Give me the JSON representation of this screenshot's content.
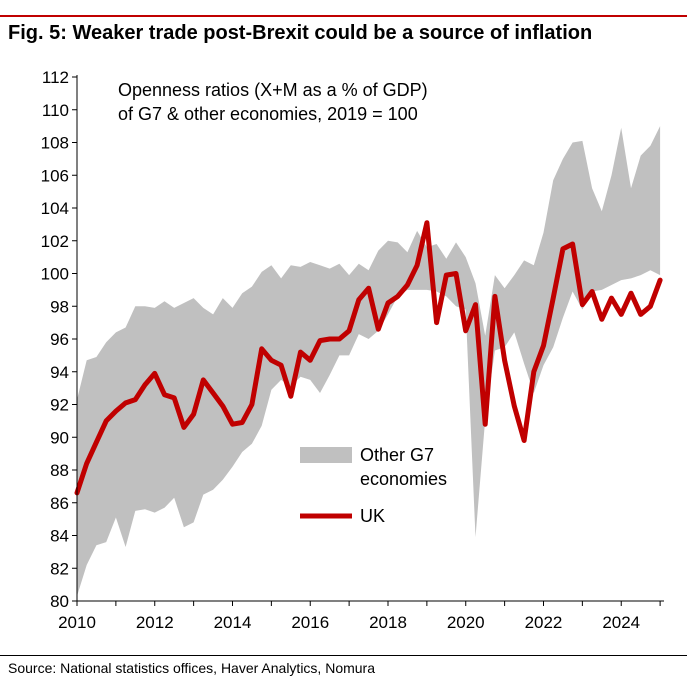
{
  "header": {
    "title": "Fig. 5: Weaker trade post-Brexit could be a source of inflation"
  },
  "footer": {
    "source": "Source: National statistics offices, Haver Analytics, Nomura"
  },
  "colors": {
    "accent": "#c00000",
    "uk_line": "#c00000",
    "band": "#c0c0c0"
  },
  "chart_data": {
    "type": "area",
    "title": "Openness ratios (X+M as a % of GDP) of G7 & other economies, 2019 = 100",
    "annotation_lines": [
      "Openness ratios (X+M as a % of GDP)",
      "of G7 & other economies, 2019 = 100"
    ],
    "xlabel": "",
    "ylabel": "",
    "xlim": [
      2010,
      2025.1
    ],
    "ylim": [
      80,
      112
    ],
    "x_ticks": [
      2010,
      2012,
      2014,
      2016,
      2018,
      2020,
      2022,
      2024
    ],
    "y_ticks": [
      80,
      82,
      84,
      86,
      88,
      90,
      92,
      94,
      96,
      98,
      100,
      102,
      104,
      106,
      108,
      110,
      112
    ],
    "grid": false,
    "legend": {
      "placement": "bottom-middle",
      "entries": [
        {
          "label_lines": [
            "Other G7",
            "economies"
          ],
          "kind": "band"
        },
        {
          "label_lines": [
            "UK"
          ],
          "kind": "line"
        }
      ]
    },
    "series": [
      {
        "name": "Other G7 economies",
        "kind": "band",
        "x": [
          2010.0,
          2010.25,
          2010.5,
          2010.75,
          2011.0,
          2011.25,
          2011.5,
          2011.75,
          2012.0,
          2012.25,
          2012.5,
          2012.75,
          2013.0,
          2013.25,
          2013.5,
          2013.75,
          2014.0,
          2014.25,
          2014.5,
          2014.75,
          2015.0,
          2015.25,
          2015.5,
          2015.75,
          2016.0,
          2016.25,
          2016.5,
          2016.75,
          2017.0,
          2017.25,
          2017.5,
          2017.75,
          2018.0,
          2018.25,
          2018.5,
          2018.75,
          2019.0,
          2019.25,
          2019.5,
          2019.75,
          2020.0,
          2020.25,
          2020.5,
          2020.75,
          2021.0,
          2021.25,
          2021.5,
          2021.75,
          2022.0,
          2022.25,
          2022.5,
          2022.75,
          2023.0,
          2023.25,
          2023.5,
          2023.75,
          2024.0,
          2024.25,
          2024.5,
          2024.75,
          2025.0
        ],
        "upper": [
          92.3,
          94.7,
          94.9,
          95.8,
          96.4,
          96.7,
          98.0,
          98.0,
          97.9,
          98.3,
          97.9,
          98.2,
          98.5,
          97.9,
          97.5,
          98.5,
          97.9,
          98.8,
          99.2,
          100.1,
          100.5,
          99.7,
          100.5,
          100.4,
          100.7,
          100.5,
          100.3,
          100.6,
          99.9,
          100.6,
          100.2,
          101.4,
          102.0,
          101.9,
          101.3,
          102.6,
          101.6,
          101.8,
          100.9,
          101.9,
          101.0,
          99.4,
          96.2,
          99.9,
          99.1,
          99.9,
          100.8,
          100.5,
          102.5,
          105.7,
          107.0,
          108.0,
          108.1,
          105.2,
          103.8,
          106.0,
          108.9,
          105.2,
          107.2,
          107.8,
          109.0
        ],
        "lower": [
          80.3,
          82.2,
          83.4,
          83.6,
          85.1,
          83.3,
          85.5,
          85.6,
          85.4,
          85.7,
          86.3,
          84.5,
          84.8,
          86.5,
          86.8,
          87.4,
          88.2,
          89.1,
          89.6,
          90.7,
          92.9,
          93.5,
          93.1,
          93.7,
          93.5,
          92.7,
          93.8,
          95.0,
          95.0,
          96.3,
          96.0,
          96.5,
          97.5,
          98.6,
          99.0,
          99.0,
          99.0,
          98.9,
          98.6,
          98.0,
          97.8,
          83.9,
          91.1,
          95.3,
          95.5,
          96.4,
          94.5,
          92.7,
          94.4,
          95.5,
          97.3,
          98.9,
          97.8,
          98.9,
          99.0,
          99.3,
          99.6,
          99.7,
          99.9,
          100.2,
          99.9
        ]
      },
      {
        "name": "UK",
        "kind": "line",
        "x": [
          2010.0,
          2010.25,
          2010.5,
          2010.75,
          2011.0,
          2011.25,
          2011.5,
          2011.75,
          2012.0,
          2012.25,
          2012.5,
          2012.75,
          2013.0,
          2013.25,
          2013.5,
          2013.75,
          2014.0,
          2014.25,
          2014.5,
          2014.75,
          2015.0,
          2015.25,
          2015.5,
          2015.75,
          2016.0,
          2016.25,
          2016.5,
          2016.75,
          2017.0,
          2017.25,
          2017.5,
          2017.75,
          2018.0,
          2018.25,
          2018.5,
          2018.75,
          2019.0,
          2019.25,
          2019.5,
          2019.75,
          2020.0,
          2020.25,
          2020.5,
          2020.75,
          2021.0,
          2021.25,
          2021.5,
          2021.75,
          2022.0,
          2022.25,
          2022.5,
          2022.75,
          2023.0,
          2023.25,
          2023.5,
          2023.75,
          2024.0,
          2024.25,
          2024.5,
          2024.75,
          2025.0
        ],
        "values": [
          86.6,
          88.4,
          89.7,
          91.0,
          91.6,
          92.1,
          92.3,
          93.2,
          93.9,
          92.6,
          92.4,
          90.6,
          91.4,
          93.5,
          92.7,
          91.9,
          90.8,
          90.9,
          92.0,
          95.4,
          94.7,
          94.4,
          92.5,
          95.2,
          94.7,
          95.9,
          96.0,
          96.0,
          96.5,
          98.4,
          99.1,
          96.6,
          98.2,
          98.6,
          99.3,
          100.5,
          103.1,
          97.0,
          99.9,
          100.0,
          96.5,
          98.1,
          90.8,
          98.6,
          94.7,
          91.9,
          89.8,
          94.0,
          95.6,
          98.5,
          101.5,
          101.8,
          98.1,
          98.9,
          97.2,
          98.5,
          97.5,
          98.8,
          97.5,
          98.0,
          99.6
        ]
      }
    ]
  }
}
